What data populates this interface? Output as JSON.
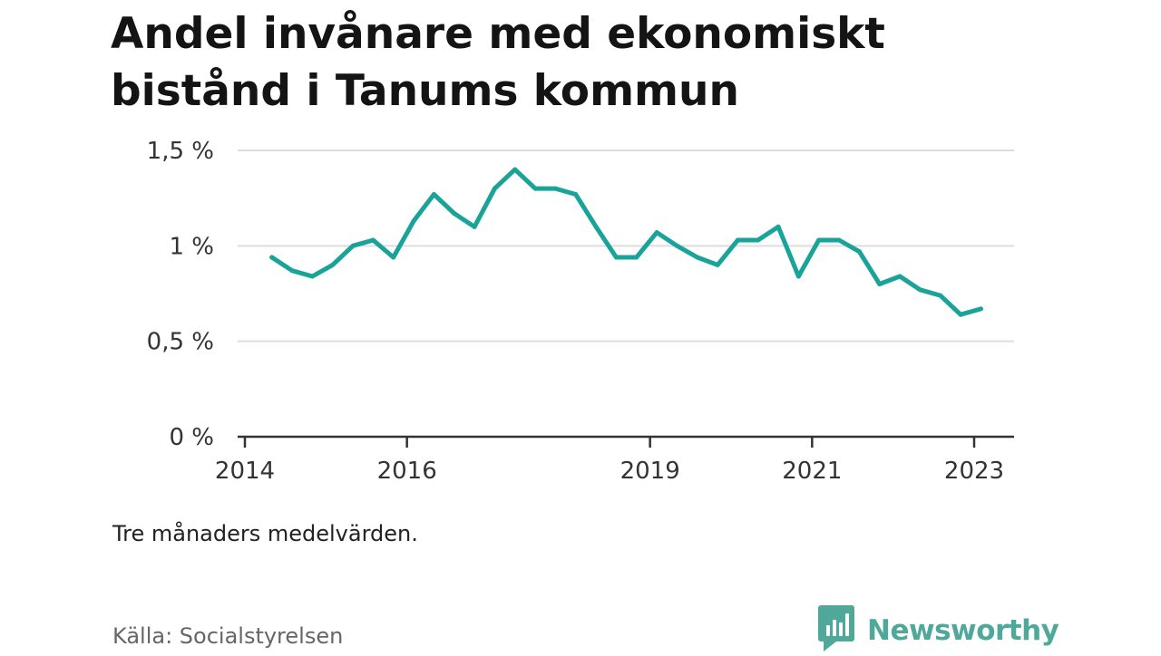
{
  "title": "Andel invånare med ekonomiskt bistånd i Tanums kommun",
  "note": "Tre månaders medelvärden.",
  "source": "Källa: Socialstyrelsen",
  "brand": {
    "name": "Newsworthy",
    "logo_icon": "newsworthy-logo-icon"
  },
  "colors": {
    "line": "#1aa399",
    "grid": "#dddddd",
    "axis": "#333333",
    "brand": "#4fa89a"
  },
  "chart_data": {
    "type": "line",
    "title": "Andel invånare med ekonomiskt bistånd i Tanums kommun",
    "xlabel": "",
    "ylabel": "",
    "grid": true,
    "ylim": [
      0,
      1.5
    ],
    "yticks": [
      0,
      0.5,
      1,
      1.5
    ],
    "ytick_labels": [
      "0 %",
      "0,5 %",
      "1 %",
      "1,5 %"
    ],
    "xticks": [
      2014,
      2016,
      2019,
      2021,
      2023
    ],
    "xtick_labels": [
      "2014",
      "2016",
      "2019",
      "2021",
      "2023"
    ],
    "xlim": [
      2014,
      2023.5
    ],
    "series": [
      {
        "x": [
          2014.333,
          2014.583,
          2014.833,
          2015.083,
          2015.333,
          2015.583,
          2015.833,
          2016.083,
          2016.333,
          2016.583,
          2016.833,
          2017.083,
          2017.333,
          2017.583,
          2017.833,
          2018.083,
          2018.333,
          2018.583,
          2018.833,
          2019.083,
          2019.333,
          2019.583,
          2019.833,
          2020.083,
          2020.333,
          2020.583,
          2020.833,
          2021.083,
          2021.333,
          2021.583,
          2021.833,
          2022.083,
          2022.333,
          2022.583,
          2022.833,
          2023.083
        ],
        "values": [
          0.94,
          0.87,
          0.84,
          0.9,
          1.0,
          1.03,
          0.94,
          1.13,
          1.27,
          1.17,
          1.1,
          1.3,
          1.4,
          1.3,
          1.3,
          1.27,
          1.1,
          0.94,
          0.94,
          1.07,
          1.0,
          0.94,
          0.9,
          1.03,
          1.03,
          1.1,
          0.84,
          1.03,
          1.03,
          0.97,
          0.8,
          0.84,
          0.77,
          0.74,
          0.64,
          0.67
        ]
      }
    ]
  }
}
